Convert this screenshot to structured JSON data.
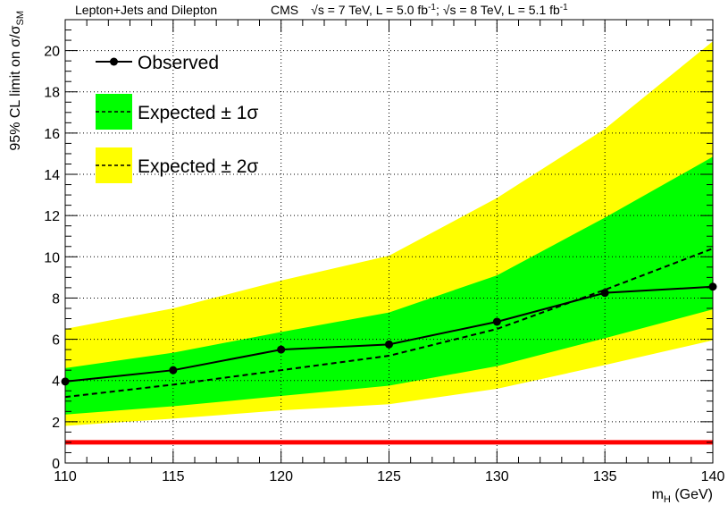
{
  "chart_data": {
    "type": "line",
    "header_left": "Lepton+Jets and Dilepton",
    "header_right": {
      "experiment": "CMS",
      "energy_1": "s = 7 TeV, L = 5.0 fb",
      "sep": ";",
      "energy_2": "s = 8 TeV, L = 5.1 fb",
      "exp": "-1"
    },
    "xlabel": {
      "main": "m",
      "sub": "H",
      "unit": " (GeV)"
    },
    "ylabel": {
      "main": "95% CL limit on σ/σ",
      "sub": "SM"
    },
    "xlim": [
      110,
      140
    ],
    "ylim": [
      0,
      21.5
    ],
    "x_ticks": [
      110,
      115,
      120,
      125,
      130,
      135,
      140
    ],
    "y_ticks": [
      0,
      2,
      4,
      6,
      8,
      10,
      12,
      14,
      16,
      18,
      20
    ],
    "grid": true,
    "legend_position": "top-left",
    "legend": [
      {
        "label": "Observed",
        "style": "observed"
      },
      {
        "label": "Expected ± 1σ",
        "style": "band1"
      },
      {
        "label": "Expected ± 2σ",
        "style": "band2"
      }
    ],
    "colors": {
      "band1": "#00ff00",
      "band2": "#ffff00",
      "reference": "#ff0000",
      "line": "#000000"
    },
    "x": [
      110,
      115,
      120,
      125,
      130,
      135,
      140
    ],
    "series": [
      {
        "name": "Observed",
        "values": [
          3.95,
          4.5,
          5.5,
          5.75,
          6.85,
          8.25,
          8.55
        ]
      },
      {
        "name": "Expected",
        "values": [
          3.2,
          3.8,
          4.5,
          5.2,
          6.5,
          8.4,
          10.4
        ]
      }
    ],
    "band_1sigma": {
      "low": [
        2.35,
        2.75,
        3.25,
        3.75,
        4.7,
        6.05,
        7.45
      ],
      "high": [
        4.6,
        5.35,
        6.35,
        7.3,
        9.1,
        11.9,
        14.85
      ]
    },
    "band_2sigma": {
      "low": [
        1.8,
        2.15,
        2.55,
        2.85,
        3.6,
        4.75,
        5.95
      ],
      "high": [
        6.5,
        7.5,
        8.85,
        10.05,
        12.85,
        16.2,
        20.45
      ]
    },
    "reference_line": 1
  }
}
